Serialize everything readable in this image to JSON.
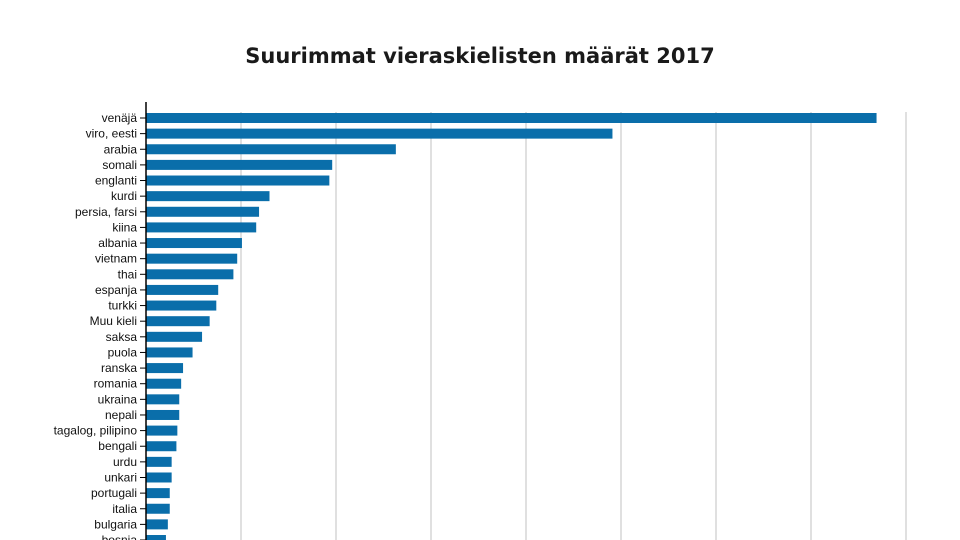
{
  "chart_data": {
    "type": "bar",
    "orientation": "horizontal",
    "title": "Suurimmat vieraskielisten määrät 2017",
    "xlabel": "",
    "ylabel": "",
    "xlim": [
      0,
      80000
    ],
    "grid": true,
    "bar_color": "#0a6eaa",
    "gridline_color": "#c0c0c0",
    "axis_color": "#000000",
    "categories": [
      "venäjä",
      "viro, eesti",
      "arabia",
      "somali",
      "englanti",
      "kurdi",
      "persia, farsi",
      "kiina",
      "albania",
      "vietnam",
      "thai",
      "espanja",
      "turkki",
      "Muu kieli",
      "saksa",
      "puola",
      "ranska",
      "romania",
      "ukraina",
      "nepali",
      "tagalog, pilipino",
      "bengali",
      "urdu",
      "unkari",
      "portugali",
      "italia",
      "bulgaria",
      "bosnia"
    ],
    "values": [
      76900,
      49100,
      26300,
      19600,
      19300,
      13000,
      11900,
      11600,
      10100,
      9600,
      9200,
      7600,
      7400,
      6700,
      5900,
      4900,
      3900,
      3700,
      3500,
      3500,
      3300,
      3200,
      2700,
      2700,
      2500,
      2500,
      2300,
      2100
    ]
  }
}
